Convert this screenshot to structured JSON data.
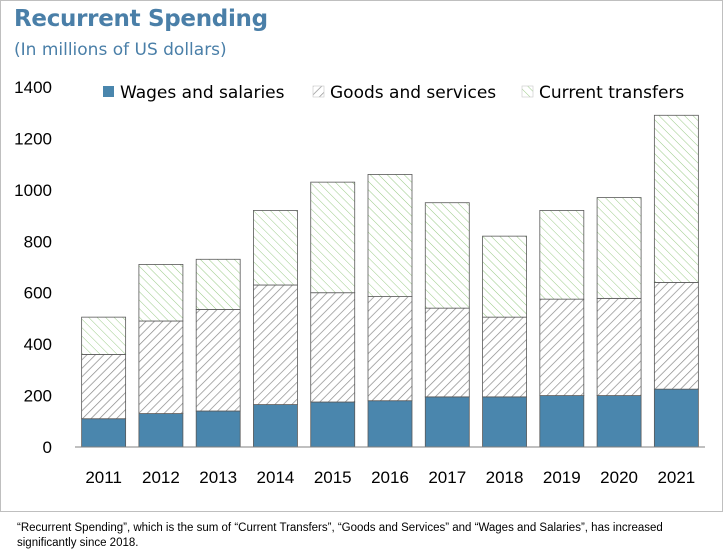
{
  "title": "Recurrent Spending",
  "subtitle": "(In millions of US dollars)",
  "caption": "“Recurrent Spending”, which is the sum of “Current Transfers”, “Goods and Services” and “Wages and Salaries”, has increased significantly since 2018.",
  "colors": {
    "title": "#4a7fa8",
    "wages": "#4a86ad",
    "goods_hatch": "#7f7f7f",
    "transfers_hatch": "#8cc07a",
    "bar_outline": "#595959"
  },
  "chart_data": {
    "type": "bar",
    "stacked": true,
    "categories": [
      "2011",
      "2012",
      "2013",
      "2014",
      "2015",
      "2016",
      "2017",
      "2018",
      "2019",
      "2020",
      "2021"
    ],
    "series": [
      {
        "name": "Wages and salaries",
        "pattern": "solid",
        "values": [
          110,
          130,
          140,
          165,
          175,
          180,
          195,
          195,
          200,
          200,
          225
        ]
      },
      {
        "name": "Goods and services",
        "pattern": "hatch-gray",
        "values": [
          250,
          360,
          395,
          465,
          425,
          405,
          345,
          310,
          375,
          378,
          415
        ]
      },
      {
        "name": "Current transfers",
        "pattern": "hatch-green",
        "values": [
          145,
          220,
          195,
          290,
          430,
          475,
          410,
          315,
          345,
          392,
          650
        ]
      }
    ],
    "ylim": [
      0,
      1400
    ],
    "yticks": [
      "0",
      "200",
      "400",
      "600",
      "800",
      "1000",
      "1200",
      "1400"
    ],
    "grid": false,
    "legend": "top"
  }
}
